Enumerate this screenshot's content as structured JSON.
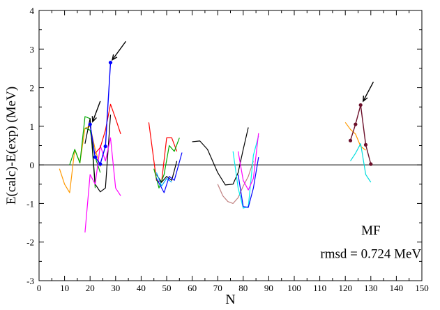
{
  "chart_data": {
    "type": "line",
    "xlabel": "N",
    "ylabel": "E(calc)-E(exp) (MeV)",
    "xlim": [
      0,
      150
    ],
    "ylim": [
      -3,
      4
    ],
    "x_ticks": [
      0,
      10,
      20,
      30,
      40,
      50,
      60,
      70,
      80,
      90,
      100,
      110,
      120,
      130,
      140,
      150
    ],
    "y_ticks": [
      -3,
      -2,
      -1,
      0,
      1,
      2,
      3,
      4
    ],
    "grid": false,
    "zero_line": true,
    "annotations": [
      {
        "text": "MF",
        "x": 130,
        "y": -1.7
      },
      {
        "text": "rmsd = 0.724 MeV",
        "x": 130,
        "y": -2.3
      }
    ],
    "series": [
      {
        "color": "#ff9900",
        "markers": false,
        "x": [
          8,
          10,
          12,
          14
        ],
        "y": [
          -0.1,
          -0.5,
          -0.72,
          0.4
        ]
      },
      {
        "color": "#ff9900",
        "markers": false,
        "x": [
          14,
          16,
          18,
          20,
          22,
          24
        ],
        "y": [
          0.4,
          0.05,
          0.95,
          1.0,
          0.4,
          -0.05
        ]
      },
      {
        "color": "#00aa00",
        "markers": false,
        "x": [
          12,
          14,
          16,
          18,
          20,
          22
        ],
        "y": [
          0.0,
          0.4,
          0.05,
          1.25,
          1.2,
          -0.6
        ]
      },
      {
        "color": "#00aa00",
        "markers": false,
        "x": [
          18,
          20,
          22,
          24
        ],
        "y": [
          0.95,
          0.9,
          0.2,
          -0.2
        ]
      },
      {
        "color": "#000000",
        "markers": false,
        "x": [
          18,
          20,
          22,
          24,
          26,
          28
        ],
        "y": [
          0.55,
          1.2,
          -0.5,
          -0.7,
          -0.6,
          1.3
        ]
      },
      {
        "color": "#ff00ff",
        "markers": false,
        "x": [
          18,
          20,
          22,
          24,
          26,
          28,
          30,
          32
        ],
        "y": [
          -1.75,
          -0.25,
          -0.5,
          0.5,
          0.1,
          0.7,
          -0.6,
          -0.8
        ]
      },
      {
        "color": "#ff0000",
        "markers": false,
        "x": [
          22,
          24,
          26,
          28,
          30,
          32
        ],
        "y": [
          0.3,
          0.45,
          0.9,
          1.57,
          1.2,
          0.8
        ]
      },
      {
        "color": "#0000ff",
        "markers": true,
        "x": [
          20,
          22,
          24,
          26,
          28
        ],
        "y": [
          1.05,
          0.2,
          0.02,
          0.48,
          2.65
        ]
      },
      {
        "color": "#ff0000",
        "markers": false,
        "x": [
          43,
          46,
          48,
          50,
          52,
          54
        ],
        "y": [
          1.1,
          -0.4,
          -0.45,
          0.7,
          0.7,
          0.35
        ]
      },
      {
        "color": "#00aa00",
        "markers": false,
        "x": [
          45,
          47,
          49,
          51,
          53,
          55
        ],
        "y": [
          -0.1,
          -0.6,
          -0.25,
          0.5,
          0.35,
          0.7
        ]
      },
      {
        "color": "#000000",
        "markers": false,
        "x": [
          46,
          48,
          50,
          52,
          54
        ],
        "y": [
          -0.25,
          -0.45,
          -0.3,
          -0.4,
          0.1
        ]
      },
      {
        "color": "#00aaff",
        "markers": false,
        "x": [
          46,
          48,
          50,
          52
        ],
        "y": [
          -0.2,
          -0.55,
          -0.35,
          -0.45
        ]
      },
      {
        "color": "#0000ff",
        "markers": false,
        "x": [
          46,
          49,
          51,
          53,
          56
        ],
        "y": [
          -0.35,
          -0.72,
          -0.3,
          -0.4,
          0.32
        ]
      },
      {
        "color": "#000000",
        "markers": false,
        "x": [
          60,
          63,
          66,
          70,
          73,
          76,
          78,
          80,
          82
        ],
        "y": [
          0.6,
          0.62,
          0.4,
          -0.2,
          -0.52,
          -0.5,
          -0.2,
          0.4,
          0.97
        ]
      },
      {
        "color": "#c08080",
        "markers": false,
        "x": [
          70,
          72,
          74,
          76,
          78,
          80,
          82,
          84
        ],
        "y": [
          -0.5,
          -0.8,
          -0.95,
          -1.0,
          -0.85,
          -0.55,
          -0.3,
          0.1
        ]
      },
      {
        "color": "#00eeee",
        "markers": false,
        "x": [
          76,
          78,
          80,
          82,
          84,
          86
        ],
        "y": [
          0.35,
          -0.6,
          -1.12,
          -1.08,
          0.25,
          0.75
        ]
      },
      {
        "color": "#ff00ff",
        "markers": false,
        "x": [
          78,
          80,
          82,
          84,
          86
        ],
        "y": [
          0.35,
          -0.4,
          -0.65,
          -0.35,
          0.82
        ]
      },
      {
        "color": "#0000ff",
        "markers": false,
        "x": [
          78,
          80,
          82,
          84,
          86
        ],
        "y": [
          -0.25,
          -1.08,
          -1.1,
          -0.6,
          0.2
        ]
      },
      {
        "color": "#ff9900",
        "markers": false,
        "x": [
          120,
          122,
          124,
          126,
          128
        ],
        "y": [
          1.1,
          0.92,
          0.8,
          0.48,
          0.38
        ]
      },
      {
        "color": "#00dddd",
        "markers": false,
        "x": [
          122,
          124,
          126,
          128,
          130
        ],
        "y": [
          0.1,
          0.3,
          0.55,
          -0.25,
          -0.45
        ]
      },
      {
        "color": "#6b0f2a",
        "markers": true,
        "x": [
          122,
          124,
          126,
          128,
          130
        ],
        "y": [
          0.63,
          1.05,
          1.55,
          0.52,
          0.02
        ]
      }
    ],
    "arrows": [
      {
        "from": [
          34,
          3.2
        ],
        "to": [
          28.7,
          2.72
        ]
      },
      {
        "from": [
          24,
          1.65
        ],
        "to": [
          21,
          1.12
        ]
      },
      {
        "from": [
          131,
          2.15
        ],
        "to": [
          127,
          1.65
        ]
      }
    ]
  }
}
